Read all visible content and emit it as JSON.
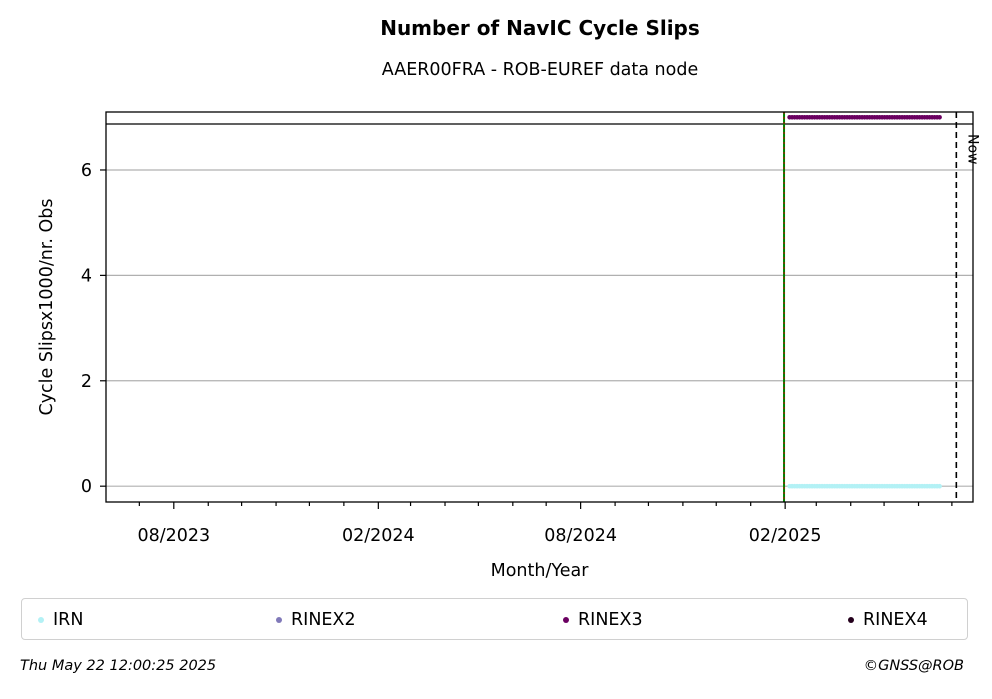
{
  "colors": {
    "IRN": "#b3f1f5",
    "RINEX2": "#8079b9",
    "RINEX3": "#6b0061",
    "RINEX4": "#24001c",
    "start_line_green": "#008000",
    "start_line_red": "#cc0000",
    "grid": "#b0b0b0"
  },
  "chart_data": {
    "type": "scatter",
    "title": "Number of NavIC Cycle Slips",
    "subtitle": "AAER00FRA - ROB-EUREF data node",
    "xlabel": "Month/Year",
    "ylabel": "Cycle Slipsx1000/nr. Obs",
    "x_ticks": [
      "08/2023",
      "02/2024",
      "08/2024",
      "02/2025"
    ],
    "y_ticks": [
      0,
      2,
      4,
      6
    ],
    "ylim": [
      -0.3,
      7.1
    ],
    "grid": "horizontal",
    "legend_position": "bottom",
    "annotations": [
      {
        "label": "Now",
        "x": "2025-07-05"
      },
      {
        "label": "",
        "x": "2025-01-31"
      }
    ],
    "series": [
      {
        "name": "IRN",
        "x_start": "2025-02-05",
        "x_end": "2025-06-20",
        "y": 0
      },
      {
        "name": "RINEX2",
        "x_start": null,
        "x_end": null,
        "y": null
      },
      {
        "name": "RINEX3",
        "x_start": "2025-02-05",
        "x_end": "2025-06-20",
        "y": 7
      },
      {
        "name": "RINEX4",
        "x_start": null,
        "x_end": null,
        "y": null
      }
    ],
    "xlim": [
      "2023-06-01",
      "2025-07-20"
    ]
  },
  "legend": {
    "items": [
      {
        "label": "IRN"
      },
      {
        "label": "RINEX2"
      },
      {
        "label": "RINEX3"
      },
      {
        "label": "RINEX4"
      }
    ]
  },
  "footer": {
    "timestamp": "Thu May 22 12:00:25 2025",
    "credit": "©GNSS@ROB"
  }
}
